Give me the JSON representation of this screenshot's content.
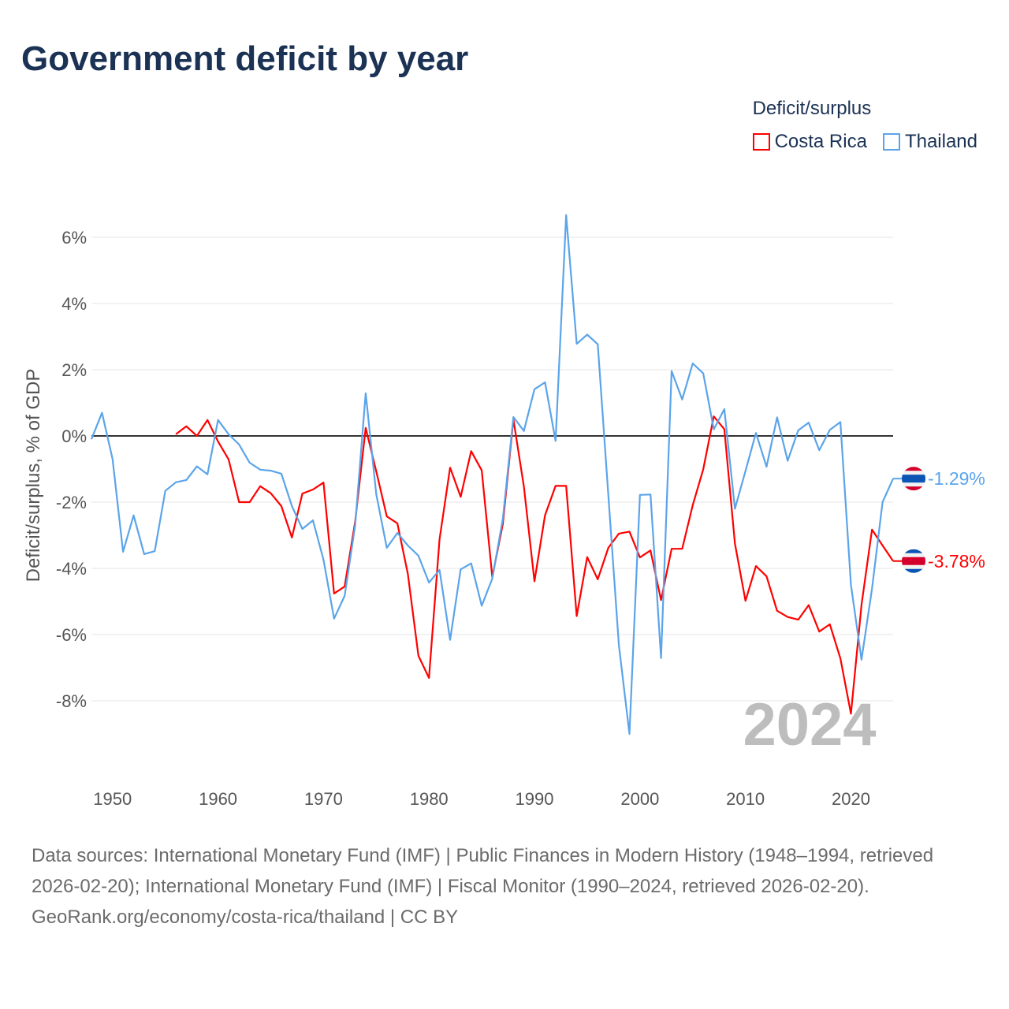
{
  "title": "Government deficit by year",
  "legend": {
    "title": "Deficit/surplus",
    "items": [
      {
        "label": "Costa Rica",
        "color": "#ff0000"
      },
      {
        "label": "Thailand",
        "color": "#5ba4ea"
      }
    ]
  },
  "chart_data": {
    "type": "line",
    "title": "Government deficit by year",
    "ylabel": "Deficit/surplus, % of GDP",
    "xlabel": "",
    "xlim": [
      1948,
      2024
    ],
    "ylim": [
      -9.5,
      7
    ],
    "x_ticks": [
      1950,
      1960,
      1970,
      1980,
      1990,
      2000,
      2010,
      2020
    ],
    "y_ticks": [
      6,
      4,
      2,
      0,
      -2,
      -4,
      -6,
      -8
    ],
    "y_tick_labels": [
      "6%",
      "4%",
      "2%",
      "0%",
      "-2%",
      "-4%",
      "-6%",
      "-8%"
    ],
    "grid": true,
    "year_watermark": "2024",
    "series": [
      {
        "name": "Costa Rica",
        "color": "#ff0000",
        "start_year": 1956,
        "end_label": "-3.78%",
        "values": [
          0.05,
          0.29,
          0.0,
          0.48,
          -0.17,
          -0.71,
          -2.0,
          -2.0,
          -1.52,
          -1.73,
          -2.12,
          -3.07,
          -1.74,
          -1.62,
          -1.41,
          -4.76,
          -4.55,
          -2.6,
          0.24,
          -1.07,
          -2.43,
          -2.64,
          -4.17,
          -6.64,
          -7.31,
          -3.12,
          -0.96,
          -1.84,
          -0.46,
          -1.04,
          -4.26,
          -2.66,
          0.5,
          -1.53,
          -4.39,
          -2.4,
          -1.51,
          -1.51,
          -5.44,
          -3.66,
          -4.33,
          -3.38,
          -2.95,
          -2.89,
          -3.67,
          -3.46,
          -4.96,
          -3.41,
          -3.41,
          -2.09,
          -1.01,
          0.59,
          0.2,
          -3.25,
          -4.98,
          -3.93,
          -4.24,
          -5.28,
          -5.47,
          -5.55,
          -5.11,
          -5.91,
          -5.69,
          -6.72,
          -8.39,
          -5.1,
          -2.83,
          -3.31,
          -3.78
        ]
      },
      {
        "name": "Thailand",
        "color": "#5ba4ea",
        "start_year": 1948,
        "end_label": "-1.29%",
        "values": [
          -0.1,
          0.7,
          -0.7,
          -3.5,
          -2.4,
          -3.57,
          -3.48,
          -1.66,
          -1.4,
          -1.33,
          -0.92,
          -1.16,
          0.48,
          0.05,
          -0.26,
          -0.81,
          -1.02,
          -1.05,
          -1.14,
          -2.12,
          -2.81,
          -2.55,
          -3.74,
          -5.52,
          -4.83,
          -2.71,
          1.29,
          -1.76,
          -3.38,
          -2.93,
          -3.31,
          -3.62,
          -4.43,
          -4.05,
          -6.16,
          -4.03,
          -3.85,
          -5.13,
          -4.31,
          -2.5,
          0.57,
          0.15,
          1.41,
          1.62,
          -0.15,
          6.67,
          2.78,
          3.06,
          2.77,
          -1.78,
          -6.32,
          -9.0,
          -1.78,
          -1.77,
          -6.71,
          1.96,
          1.1,
          2.19,
          1.89,
          0.2,
          0.81,
          -2.2,
          -1.06,
          0.09,
          -0.93,
          0.56,
          -0.75,
          0.17,
          0.4,
          -0.43,
          0.18,
          0.42,
          -4.5,
          -6.76,
          -4.62,
          -2.0,
          -1.29
        ]
      }
    ]
  },
  "footer": {
    "sources": "Data sources: International Monetary Fund (IMF) | Public Finances in Modern History (1948–1994, retrieved 2026-02-20); International Monetary Fund (IMF) | Fiscal Monitor (1990–2024, retrieved 2026-02-20).",
    "credit": "GeoRank.org/economy/costa-rica/thailand | CC BY"
  }
}
